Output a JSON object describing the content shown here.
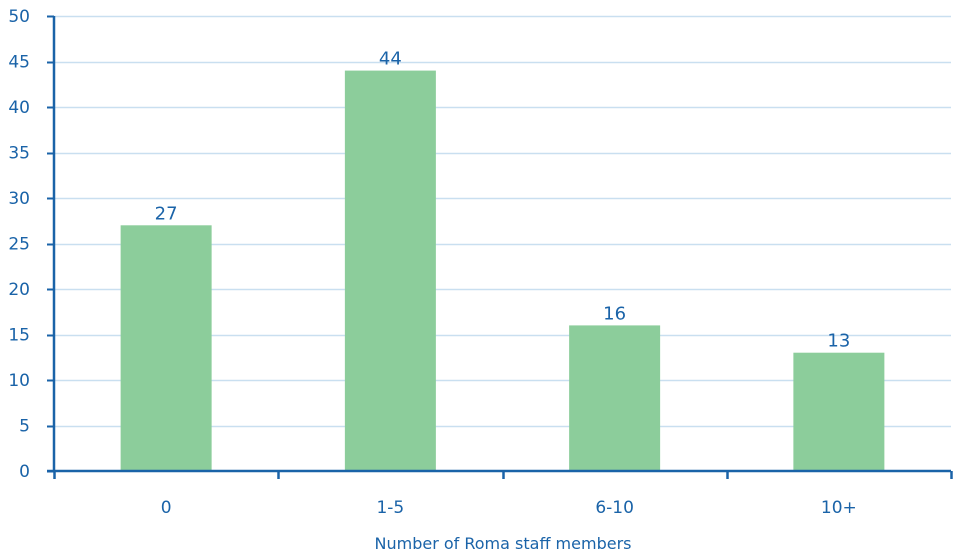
{
  "chart_data": {
    "type": "bar",
    "title": "",
    "xlabel": "Number of Roma staff members",
    "ylabel": "",
    "categories": [
      "0",
      "1-5",
      "6-10",
      "10+"
    ],
    "values": [
      27,
      44,
      16,
      13
    ],
    "data_labels": [
      "27",
      "44",
      "16",
      "13"
    ],
    "ylim": [
      0,
      50
    ],
    "yticks": [
      0,
      5,
      10,
      15,
      20,
      25,
      30,
      35,
      40,
      45,
      50
    ],
    "grid": true,
    "legend": "none"
  },
  "colors": {
    "bar": "#8ccd9b",
    "axis": "#1a63a8",
    "grid": "#c9dff0",
    "text": "#1a63a8"
  }
}
